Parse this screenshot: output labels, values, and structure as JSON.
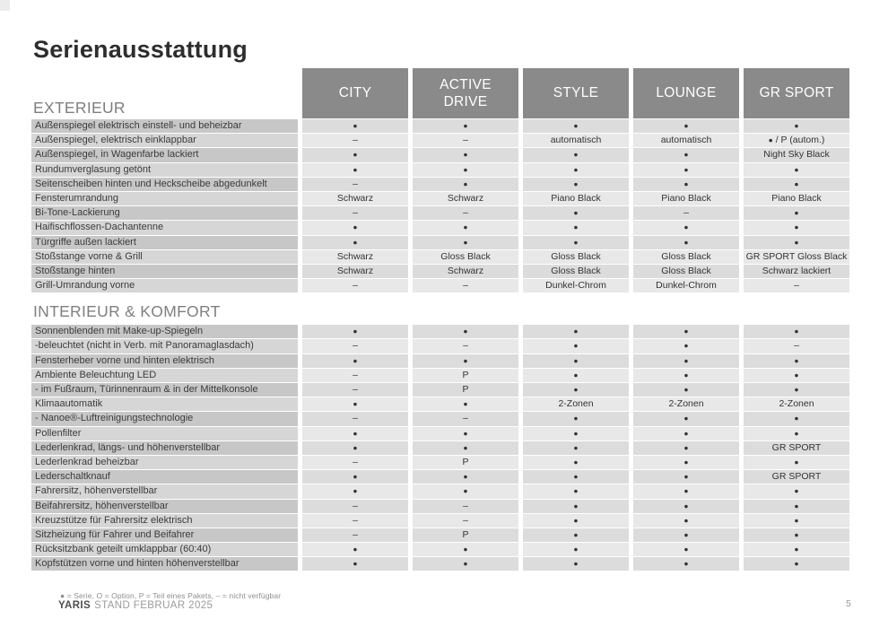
{
  "page": {
    "title": "Serienausstattung",
    "footnote": "● = Serie, O = Option, P = Teil eines Pakets, – = nicht verfügbar",
    "footer_brand": "YARIS",
    "footer_text": "STAND FEBRUAR 2025",
    "page_number": "5"
  },
  "table": {
    "columns": [
      "CITY",
      "ACTIVE DRIVE",
      "STYLE",
      "LOUNGE",
      "GR SPORT"
    ],
    "sections": [
      {
        "title": "EXTERIEUR",
        "rows": [
          {
            "label": "Außenspiegel elektrisch einstell- und beheizbar",
            "values": [
              "●",
              "●",
              "●",
              "●",
              "●"
            ]
          },
          {
            "label": "Außenspiegel, elektrisch einklappbar",
            "values": [
              "–",
              "–",
              "automatisch",
              "automatisch",
              "● / P (autom.)"
            ]
          },
          {
            "label": "Außenspiegel, in Wagenfarbe lackiert",
            "values": [
              "●",
              "●",
              "●",
              "●",
              "Night Sky Black"
            ]
          },
          {
            "label": "Rundumverglasung getönt",
            "values": [
              "●",
              "●",
              "●",
              "●",
              "●"
            ]
          },
          {
            "label": "Seitenscheiben hinten und Heckscheibe abgedunkelt",
            "values": [
              "–",
              "●",
              "●",
              "●",
              "●"
            ]
          },
          {
            "label": "Fensterumrandung",
            "values": [
              "Schwarz",
              "Schwarz",
              "Piano Black",
              "Piano Black",
              "Piano Black"
            ]
          },
          {
            "label": "Bi-Tone-Lackierung",
            "values": [
              "–",
              "–",
              "●",
              "–",
              "●"
            ]
          },
          {
            "label": "Haifischflossen-Dachantenne",
            "values": [
              "●",
              "●",
              "●",
              "●",
              "●"
            ]
          },
          {
            "label": "Türgriffe außen lackiert",
            "values": [
              "●",
              "●",
              "●",
              "●",
              "●"
            ]
          },
          {
            "label": "Stoßstange vorne & Grill",
            "values": [
              "Schwarz",
              "Gloss Black",
              "Gloss Black",
              "Gloss Black",
              "GR SPORT Gloss Black"
            ]
          },
          {
            "label": "Stoßstange hinten",
            "values": [
              "Schwarz",
              "Schwarz",
              "Gloss Black",
              "Gloss Black",
              "Schwarz lackiert"
            ]
          },
          {
            "label": "Grill-Umrandung vorne",
            "values": [
              "–",
              "–",
              "Dunkel-Chrom",
              "Dunkel-Chrom",
              "–"
            ]
          }
        ]
      },
      {
        "title": "INTERIEUR & KOMFORT",
        "rows": [
          {
            "label": "Sonnenblenden mit Make-up-Spiegeln",
            "values": [
              "●",
              "●",
              "●",
              "●",
              "●"
            ]
          },
          {
            "label": "-beleuchtet (nicht in Verb. mit Panoramaglasdach)",
            "values": [
              "–",
              "–",
              "●",
              "●",
              "–"
            ]
          },
          {
            "label": "Fensterheber vorne und hinten elektrisch",
            "values": [
              "●",
              "●",
              "●",
              "●",
              "●"
            ]
          },
          {
            "label": "Ambiente Beleuchtung LED",
            "values": [
              "–",
              "P",
              "●",
              "●",
              "●"
            ]
          },
          {
            "label": "- im Fußraum, Türinnenraum & in der Mittelkonsole",
            "values": [
              "–",
              "P",
              "●",
              "●",
              "●"
            ]
          },
          {
            "label": "Klimaautomatik",
            "values": [
              "●",
              "●",
              "2-Zonen",
              "2-Zonen",
              "2-Zonen"
            ]
          },
          {
            "label": "- Nanoe®-Luftreinigungstechnologie",
            "values": [
              "–",
              "–",
              "●",
              "●",
              "●"
            ]
          },
          {
            "label": "Pollenfilter",
            "values": [
              "●",
              "●",
              "●",
              "●",
              "●"
            ]
          },
          {
            "label": "Lederlenkrad, längs- und höhenverstellbar",
            "values": [
              "●",
              "●",
              "●",
              "●",
              "GR SPORT"
            ]
          },
          {
            "label": "Lederlenkrad beheizbar",
            "values": [
              "–",
              "P",
              "●",
              "●",
              "●"
            ]
          },
          {
            "label": "Lederschaltknauf",
            "values": [
              "●",
              "●",
              "●",
              "●",
              "GR SPORT"
            ]
          },
          {
            "label": "Fahrersitz, höhenverstellbar",
            "values": [
              "●",
              "●",
              "●",
              "●",
              "●"
            ]
          },
          {
            "label": "Beifahrersitz, höhenverstellbar",
            "values": [
              "–",
              "–",
              "●",
              "●",
              "●"
            ]
          },
          {
            "label": "Kreuzstütze für Fahrersitz elektrisch",
            "values": [
              "–",
              "–",
              "●",
              "●",
              "●"
            ]
          },
          {
            "label": "Sitzheizung für Fahrer und Beifahrer",
            "values": [
              "–",
              "P",
              "●",
              "●",
              "●"
            ]
          },
          {
            "label": "Rücksitzbank geteilt umklappbar (60:40)",
            "values": [
              "●",
              "●",
              "●",
              "●",
              "●"
            ]
          },
          {
            "label": "Kopfstützen vorne und hinten höhenverstellbar",
            "values": [
              "●",
              "●",
              "●",
              "●",
              "●"
            ]
          }
        ]
      }
    ]
  }
}
